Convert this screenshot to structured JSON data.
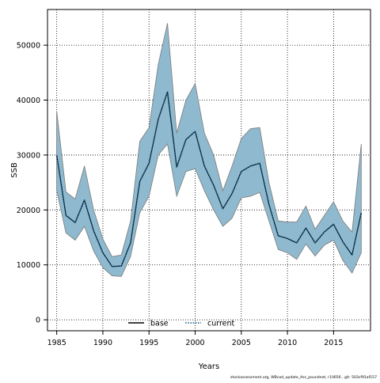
{
  "chart_data": {
    "type": "area",
    "xlabel": "Years",
    "ylabel": "SSB",
    "xlim": [
      1984,
      2019
    ],
    "ylim": [
      -2000,
      56500
    ],
    "x_ticks": [
      1985,
      1990,
      1995,
      2000,
      2005,
      2010,
      2015
    ],
    "y_ticks": [
      0,
      10000,
      20000,
      30000,
      40000,
      50000
    ],
    "grid": true,
    "legend_placement": "bottom-center",
    "x": [
      1985,
      1986,
      1987,
      1988,
      1989,
      1990,
      1991,
      1992,
      1993,
      1994,
      1995,
      1996,
      1997,
      1998,
      1999,
      2000,
      2001,
      2002,
      2003,
      2004,
      2005,
      2006,
      2007,
      2008,
      2009,
      2010,
      2011,
      2012,
      2013,
      2014,
      2015,
      2016,
      2017,
      2018
    ],
    "band": {
      "lower": [
        23500,
        15800,
        14500,
        17000,
        12500,
        9500,
        8000,
        7900,
        11500,
        19500,
        22500,
        30000,
        32000,
        22500,
        27000,
        27500,
        23500,
        20000,
        17000,
        18500,
        22200,
        22500,
        23200,
        18000,
        12800,
        12200,
        11000,
        13800,
        11600,
        13600,
        14500,
        10800,
        8500,
        12200
      ],
      "upper": [
        38000,
        23300,
        22000,
        28000,
        20000,
        14700,
        11500,
        11800,
        18000,
        32500,
        35000,
        46500,
        54000,
        34000,
        40000,
        43000,
        34000,
        30000,
        23500,
        28000,
        33000,
        34800,
        35000,
        25000,
        18000,
        17800,
        17800,
        20700,
        16500,
        19000,
        21500,
        18000,
        16000,
        32000
      ],
      "color": "#8fb9ce",
      "edge_color": "#7a7a7a"
    },
    "series": [
      {
        "name": "base",
        "color": "#000000",
        "style": "solid",
        "values": [
          30000,
          19000,
          17700,
          21800,
          16200,
          12200,
          9700,
          9800,
          14000,
          25200,
          28500,
          36500,
          41500,
          27800,
          32800,
          34300,
          28000,
          24500,
          20200,
          23000,
          27000,
          28000,
          28500,
          21000,
          15300,
          14800,
          14000,
          16700,
          14000,
          16000,
          17400,
          14200,
          11800,
          19500
        ]
      },
      {
        "name": "current",
        "color": "#1f5f8a",
        "style": "dotted",
        "values": [
          30000,
          19000,
          17700,
          21800,
          16200,
          12200,
          9700,
          9800,
          14000,
          25200,
          28500,
          36500,
          41500,
          27800,
          32800,
          34300,
          28000,
          24500,
          20200,
          23000,
          27000,
          28000,
          28500,
          21000,
          15300,
          14800,
          14000,
          16700,
          14000,
          16000,
          17400,
          14200,
          11800,
          19500
        ]
      }
    ],
    "footer_note": "stockassessment.org, WBcod_update_Ass_poundnet, r10656 , git: 503cf91af157"
  }
}
